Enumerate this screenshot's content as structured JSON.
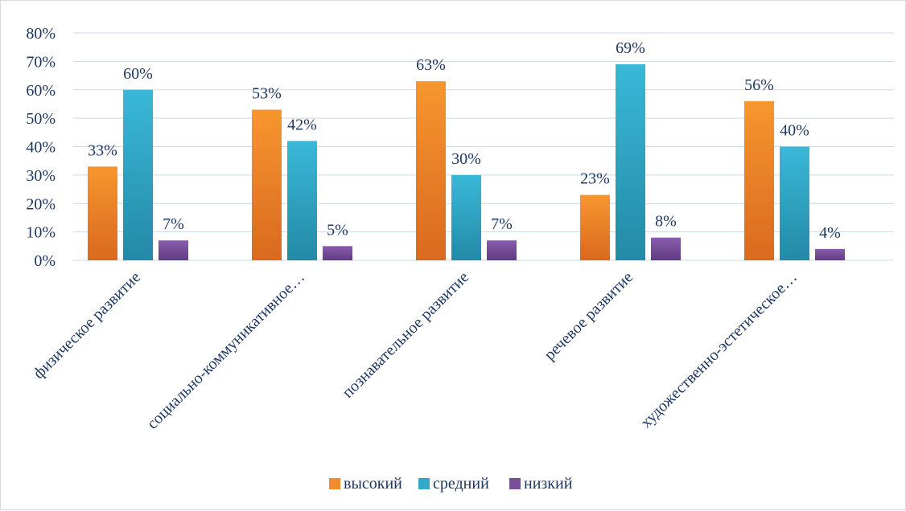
{
  "chart_data": {
    "type": "bar",
    "categories": [
      "физическое развитие",
      "социально-коммуникативное…",
      "познавательное развитие",
      "речевое развитие",
      "художественно-эстетическое…"
    ],
    "series": [
      {
        "name": "высокий",
        "values": [
          33,
          53,
          63,
          23,
          56
        ],
        "labels": [
          "33%",
          "53%",
          "63%",
          "23%",
          "56%"
        ],
        "color": "#f28a2e"
      },
      {
        "name": "средний",
        "values": [
          60,
          42,
          30,
          69,
          40
        ],
        "labels": [
          "60%",
          "42%",
          "30%",
          "69%",
          "40%"
        ],
        "color": "#31a9c9"
      },
      {
        "name": "низкий",
        "values": [
          7,
          5,
          7,
          8,
          4
        ],
        "labels": [
          "7%",
          "5%",
          "7%",
          "8%",
          "4%"
        ],
        "color": "#7a4f9a"
      }
    ],
    "ylim": [
      0,
      80
    ],
    "yticks": [
      "0%",
      "10%",
      "20%",
      "30%",
      "40%",
      "50%",
      "60%",
      "70%",
      "80%"
    ],
    "grid": true,
    "legend_position": "bottom"
  }
}
